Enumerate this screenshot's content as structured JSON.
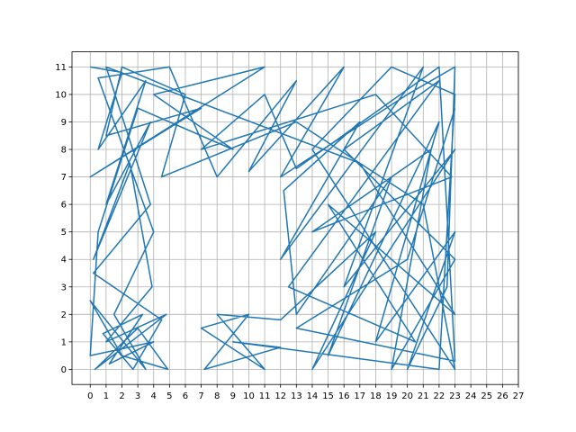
{
  "chart_data": {
    "type": "line",
    "x": [
      0,
      2,
      0.5,
      3.5,
      1,
      3.8,
      0.2,
      2.5,
      3.9,
      1,
      4.8,
      0.3,
      3,
      4.9,
      2,
      0,
      3.5,
      1.5,
      4,
      0.5,
      5,
      8,
      13,
      10,
      16,
      12,
      20,
      23,
      22.5,
      20,
      23,
      18,
      22,
      15,
      19,
      13,
      12.2,
      17,
      12,
      21,
      16,
      23,
      14,
      18,
      12,
      8,
      11,
      7,
      10,
      7.2,
      12,
      9,
      22,
      23,
      19,
      14,
      23,
      21,
      13,
      4.5,
      6,
      2,
      1,
      7,
      0,
      11,
      4,
      9,
      3,
      0.5,
      0,
      4,
      1.2,
      3.3,
      0.8,
      2.7,
      4.5,
      0.2,
      3.8,
      1,
      17,
      23,
      15,
      20.5,
      12.5,
      22,
      16,
      23,
      19,
      21.5,
      14,
      22.8,
      18,
      7,
      11,
      13,
      22,
      23,
      13,
      20,
      23
    ],
    "series": [
      {
        "color": "#1f77b4",
        "values": [
          11,
          10.8,
          8,
          10.5,
          6,
          9,
          4,
          7.5,
          3,
          1,
          2,
          0,
          1.5,
          0,
          0.5,
          2.5,
          0,
          2,
          5,
          10.6,
          11,
          7,
          10.5,
          7.2,
          11,
          7,
          10,
          11,
          3,
          0,
          5,
          1,
          9,
          0.5,
          7,
          2,
          6.5,
          9,
          4,
          11,
          3,
          8,
          0,
          5,
          1.8,
          2,
          0,
          1.5,
          2,
          0,
          0.8,
          1,
          0,
          10,
          11,
          8,
          0,
          6,
          9,
          7,
          10,
          11,
          8.5,
          9.5,
          7,
          11,
          10,
          8,
          9.5,
          5,
          0.5,
          1,
          0.2,
          2,
          1.3,
          0,
          1.8,
          3.5,
          6,
          11,
          7.5,
          2,
          6,
          1,
          3,
          10.5,
          8,
          4,
          0,
          8,
          5,
          7,
          10,
          8,
          10,
          7.3,
          11,
          0.3,
          1.5,
          4,
          9.5
        ]
      }
    ],
    "xlim": [
      -1.15,
      27
    ],
    "ylim": [
      -0.55,
      11.55
    ],
    "xticks": [
      0,
      1,
      2,
      3,
      4,
      5,
      6,
      7,
      8,
      9,
      10,
      11,
      12,
      13,
      14,
      15,
      16,
      17,
      18,
      19,
      20,
      21,
      22,
      23,
      24,
      25,
      26,
      27
    ],
    "yticks": [
      0,
      1,
      2,
      3,
      4,
      5,
      6,
      7,
      8,
      9,
      10,
      11
    ],
    "grid": true
  }
}
